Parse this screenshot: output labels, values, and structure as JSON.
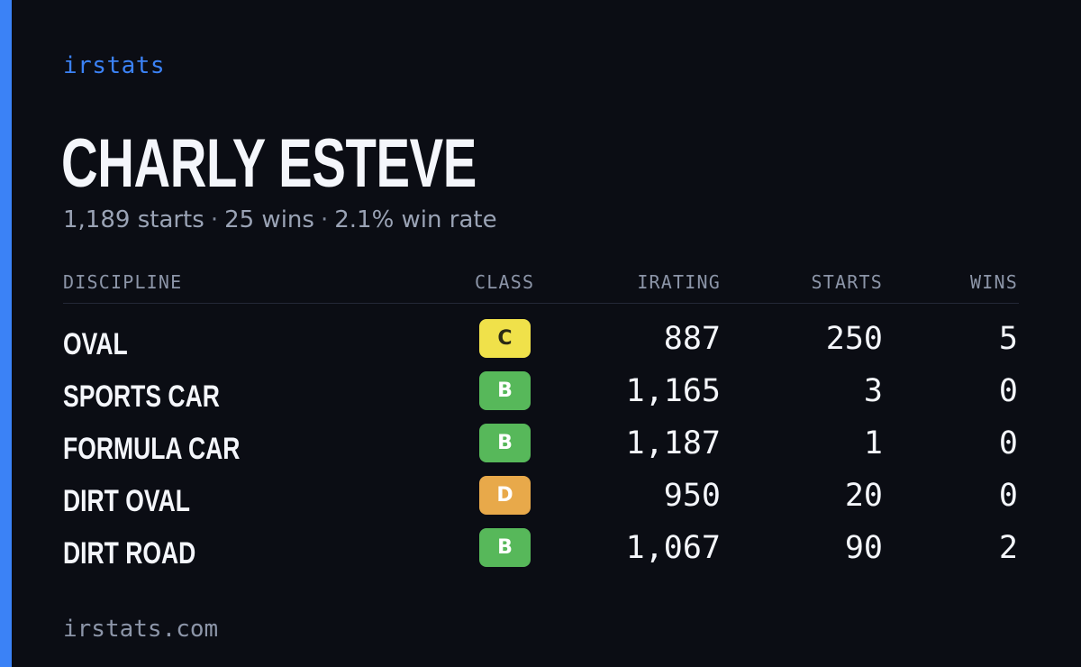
{
  "brand": "irstats",
  "driver": {
    "name": "CHARLY ESTEVE",
    "starts": "1,189 starts",
    "wins": "25 wins",
    "win_rate": "2.1% win rate",
    "separator": "·"
  },
  "accent_color": "#3b82f6",
  "table": {
    "headers": {
      "discipline": "DISCIPLINE",
      "class": "CLASS",
      "irating": "IRATING",
      "starts": "STARTS",
      "wins": "WINS"
    },
    "rows": [
      {
        "discipline": "OVAL",
        "class": "C",
        "class_color": "#f0e14a",
        "class_text_color": "#2a2a14",
        "irating": "887",
        "starts": "250",
        "wins": "5"
      },
      {
        "discipline": "SPORTS CAR",
        "class": "B",
        "class_color": "#57b85a",
        "class_text_color": "#ffffff",
        "irating": "1,165",
        "starts": "3",
        "wins": "0"
      },
      {
        "discipline": "FORMULA CAR",
        "class": "B",
        "class_color": "#57b85a",
        "class_text_color": "#ffffff",
        "irating": "1,187",
        "starts": "1",
        "wins": "0"
      },
      {
        "discipline": "DIRT OVAL",
        "class": "D",
        "class_color": "#e8a94a",
        "class_text_color": "#ffffff",
        "irating": "950",
        "starts": "20",
        "wins": "0"
      },
      {
        "discipline": "DIRT ROAD",
        "class": "B",
        "class_color": "#57b85a",
        "class_text_color": "#ffffff",
        "irating": "1,067",
        "starts": "90",
        "wins": "2"
      }
    ]
  },
  "footer": "irstats.com"
}
